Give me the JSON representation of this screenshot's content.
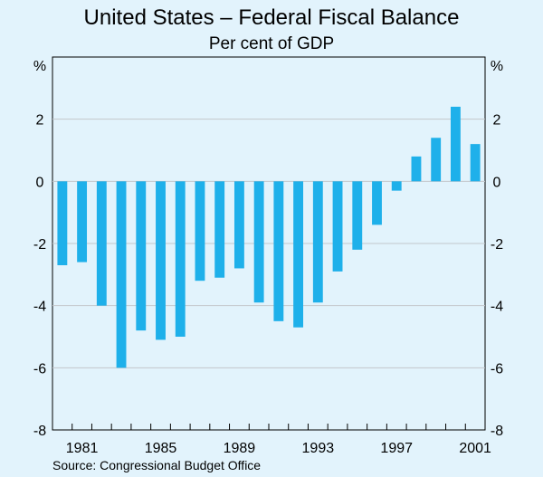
{
  "chart_data": {
    "type": "bar",
    "title": "United States – Federal Fiscal Balance",
    "subtitle": "Per cent of GDP",
    "ylabel_left": "%",
    "ylabel_right": "%",
    "source": "Source: Congressional Budget Office",
    "ylim": [
      -8,
      4
    ],
    "yticks": [
      2,
      0,
      -2,
      -4,
      -6,
      -8
    ],
    "ytick_labels": [
      "2",
      "0",
      "-2",
      "-4",
      "-6",
      "-8"
    ],
    "xlabels": [
      "1981",
      "1985",
      "1989",
      "1993",
      "1997",
      "2001"
    ],
    "years": [
      1980,
      1981,
      1982,
      1983,
      1984,
      1985,
      1986,
      1987,
      1988,
      1989,
      1990,
      1991,
      1992,
      1993,
      1994,
      1995,
      1996,
      1997,
      1998,
      1999,
      2000,
      2001
    ],
    "values": [
      -2.7,
      -2.6,
      -4.0,
      -6.0,
      -4.8,
      -5.1,
      -5.0,
      -3.2,
      -3.1,
      -2.8,
      -3.9,
      -4.5,
      -4.7,
      -3.9,
      -2.9,
      -2.2,
      -1.4,
      -0.3,
      0.8,
      1.4,
      2.4,
      1.2
    ],
    "color": "#1eb0ea",
    "grid": true,
    "gridColor": "#c3c7cb"
  }
}
